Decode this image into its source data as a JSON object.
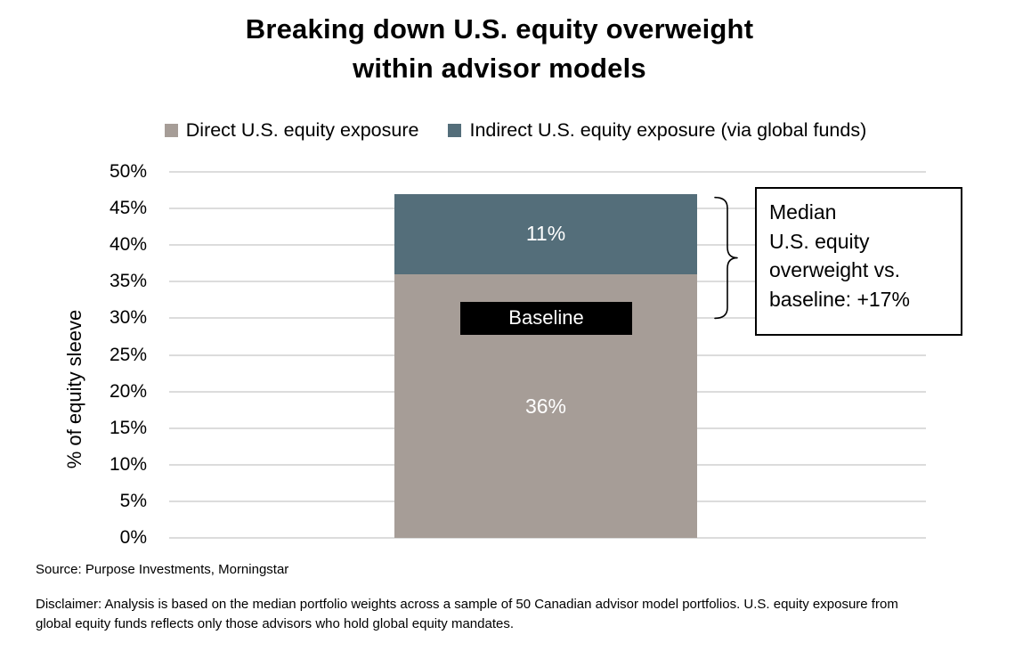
{
  "title": "Breaking down U.S. equity overweight\nwithin advisor models",
  "legend": {
    "items": [
      {
        "label": "Direct U.S. equity exposure",
        "color": "#a69d97"
      },
      {
        "label": "Indirect U.S. equity exposure (via global funds)",
        "color": "#546e7a"
      }
    ]
  },
  "y_axis_title": "% of equity sleeve",
  "baseline_label": "Baseline",
  "annotation_text": "Median\nU.S. equity\noverweight vs.\nbaseline: +17%",
  "source": "Source: Purpose Investments, Morningstar",
  "disclaimer": "Disclaimer: Analysis is based on the median portfolio weights across a sample of 50 Canadian advisor model portfolios. U.S. equity exposure from global equity funds reflects only those advisors who hold global equity mandates.",
  "colors": {
    "direct": "#a69d97",
    "indirect": "#546e7a",
    "gridline": "#dcdcdc",
    "baseline_bg": "#000000",
    "bar_label_text": "#ffffff"
  },
  "chart_data": {
    "type": "bar",
    "stacked": true,
    "categories": [
      ""
    ],
    "series": [
      {
        "name": "Direct U.S. equity exposure",
        "values": [
          36
        ],
        "color": "#a69d97",
        "data_label": "36%"
      },
      {
        "name": "Indirect U.S. equity exposure (via global funds)",
        "values": [
          11
        ],
        "color": "#546e7a",
        "data_label": "11%"
      }
    ],
    "title": "Breaking down U.S. equity overweight within advisor models",
    "xlabel": "",
    "ylabel": "% of equity sleeve",
    "ylim": [
      0,
      50
    ],
    "ytick_step": 5,
    "ytick_suffix": "%",
    "grid": "horizontal",
    "legend_position": "top",
    "bar_total": 47,
    "annotations": [
      {
        "type": "label",
        "text": "Baseline",
        "y": 30
      },
      {
        "type": "bracket",
        "text": "Median U.S. equity overweight vs. baseline: +17%",
        "from_y": 30,
        "to_y": 47
      }
    ]
  }
}
